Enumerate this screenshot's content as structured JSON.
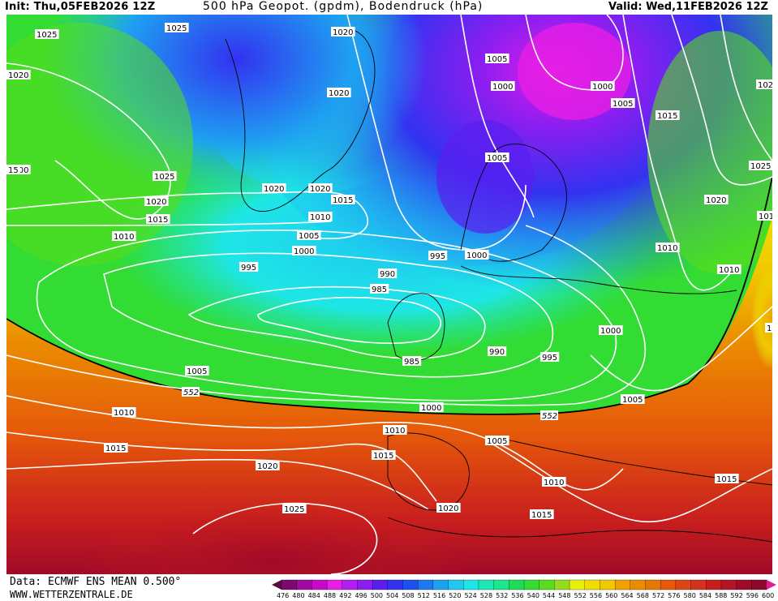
{
  "header": {
    "init": "Init: Thu,05FEB2026 12Z",
    "title": "500 hPa Geopot. (gpdm), Bodendruck (hPa)",
    "valid": "Valid: Wed,11FEB2026 12Z"
  },
  "footer": {
    "data_source": "Data: ECMWF ENS MEAN 0.500°",
    "website": "WWW.WETTERZENTRALE.DE"
  },
  "legend": {
    "colors": [
      "#5a0a3c",
      "#7a0a6e",
      "#a00aa0",
      "#c80ac8",
      "#e61ee6",
      "#b41ef0",
      "#8c1ef0",
      "#5a1ef0",
      "#3232f0",
      "#1e50f0",
      "#1e78f0",
      "#1ea0f0",
      "#1ec8f0",
      "#1ee6e6",
      "#1ee6b4",
      "#1ee68c",
      "#1edc5a",
      "#32dc32",
      "#5adc1e",
      "#96dc1e",
      "#e6f00a",
      "#f0dc00",
      "#f0c800",
      "#f0a000",
      "#eb8c00",
      "#e67800",
      "#e65a0a",
      "#dc4614",
      "#d2321e",
      "#c81e1e",
      "#b41423",
      "#a00a28",
      "#8c0a2d",
      "#dc1e96"
    ],
    "labels": [
      "476",
      "480",
      "484",
      "488",
      "492",
      "496",
      "500",
      "504",
      "508",
      "512",
      "516",
      "520",
      "524",
      "528",
      "532",
      "536",
      "540",
      "544",
      "548",
      "552",
      "556",
      "560",
      "564",
      "568",
      "572",
      "576",
      "580",
      "584",
      "588",
      "592",
      "596",
      "600"
    ]
  },
  "map": {
    "isobar_labels": [
      "1025",
      "1025",
      "1020",
      "1020",
      "1020",
      "1005",
      "1000",
      "1000",
      "1005",
      "1015",
      "1025",
      "1020",
      "1015",
      "1010",
      "1020",
      "1020",
      "1015",
      "1010",
      "1005",
      "1000",
      "995",
      "995",
      "1000",
      "1005",
      "1025",
      "1020",
      "1010",
      "1010",
      "1010",
      "990",
      "985",
      "985",
      "990",
      "995",
      "1000",
      "1005",
      "1000",
      "1010",
      "1005",
      "1015",
      "1005",
      "1010",
      "1015",
      "1020",
      "1015",
      "1015",
      "1020",
      "1025",
      "1025",
      "1010",
      "1000",
      "15",
      "10",
      "10"
    ],
    "contour_552_label": "552",
    "contour_552_label_right": "552"
  }
}
